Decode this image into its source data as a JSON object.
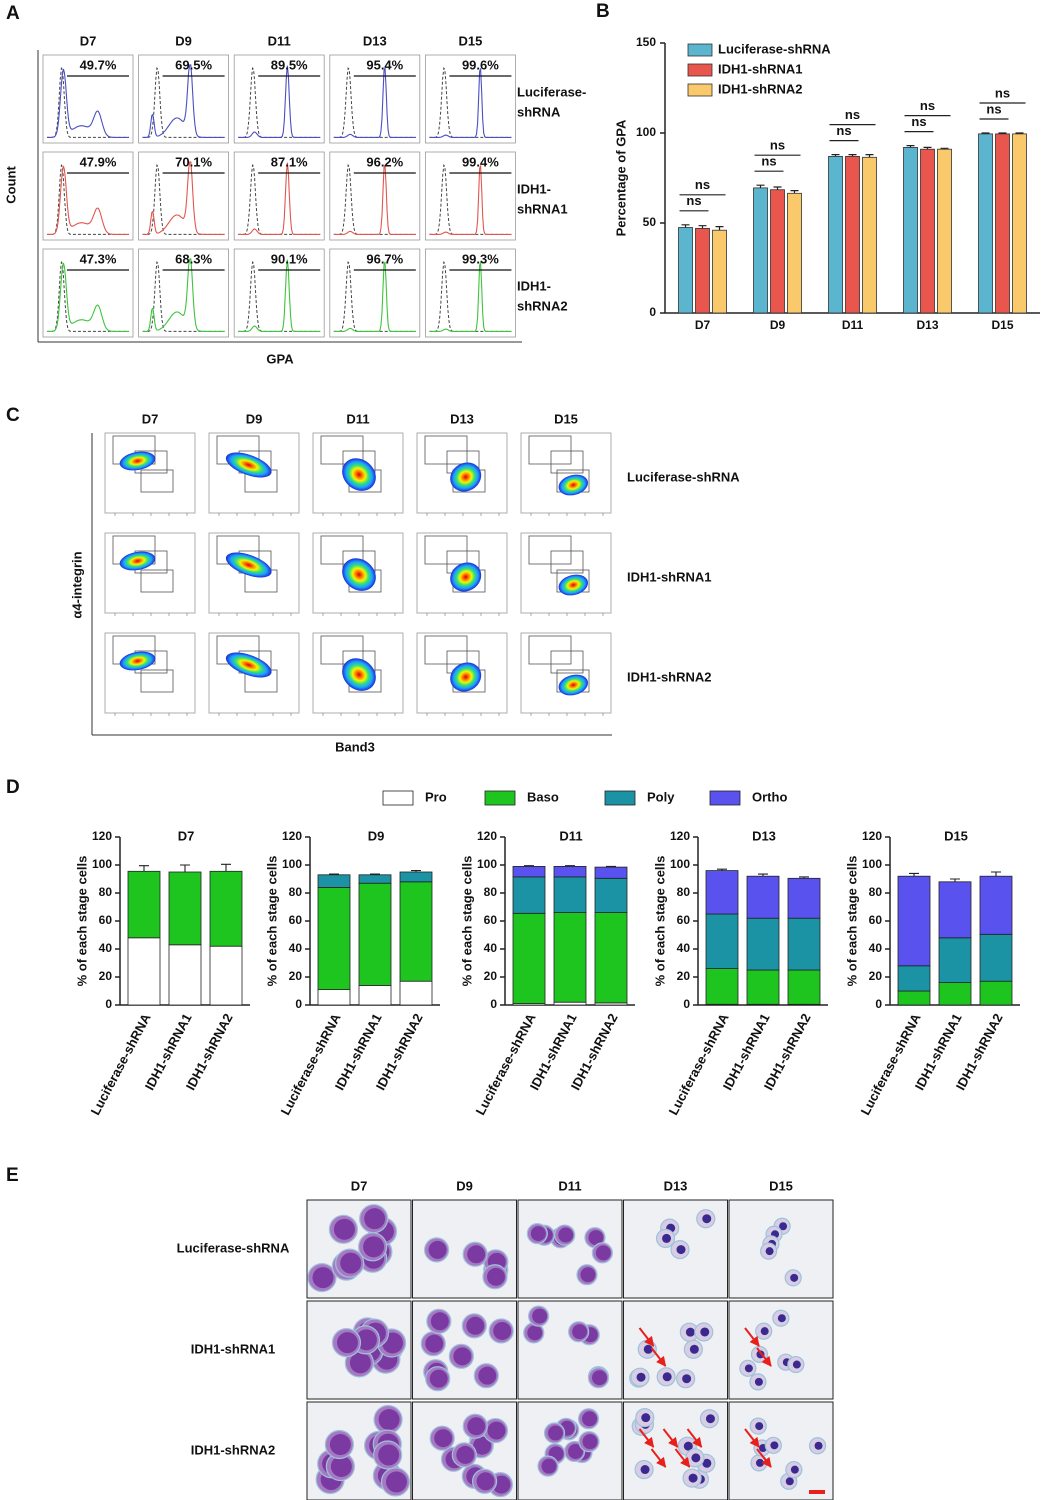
{
  "panel_labels": [
    "A",
    "B",
    "C",
    "D",
    "E"
  ],
  "panel_a": {
    "columns": [
      "D7",
      "D9",
      "D11",
      "D13",
      "D15"
    ],
    "ylabel": "Count",
    "xlabel": "GPA",
    "rows": [
      {
        "label_lines": [
          "Luciferase-",
          "shRNA"
        ],
        "color": "#4a4fc4",
        "gates": [
          "49.7%",
          "69.5%",
          "89.5%",
          "95.4%",
          "99.6%"
        ]
      },
      {
        "label_lines": [
          "IDH1-",
          "shRNA1"
        ],
        "color": "#e0574f",
        "gates": [
          "47.9%",
          "70.1%",
          "87.1%",
          "96.2%",
          "99.4%"
        ]
      },
      {
        "label_lines": [
          "IDH1-",
          "shRNA2"
        ],
        "color": "#3ec43e",
        "gates": [
          "47.3%",
          "68.3%",
          "90.1%",
          "96.7%",
          "99.3%"
        ]
      }
    ]
  },
  "chart_data": [
    {
      "type": "grouped_bar",
      "ylabel": "Percentage of GPA",
      "categories": [
        "D7",
        "D9",
        "D11",
        "D13",
        "D15"
      ],
      "series": [
        {
          "name": "Luciferase-shRNA",
          "color": "#5bb5cf",
          "values": [
            47.5,
            69.5,
            87,
            92,
            99.5
          ],
          "errors": [
            1.5,
            1.5,
            1,
            1,
            0.5
          ]
        },
        {
          "name": "IDH1-shRNA1",
          "color": "#e8564d",
          "values": [
            47,
            68.5,
            87,
            91,
            99.5
          ],
          "errors": [
            1.5,
            1.5,
            1,
            1,
            0.5
          ]
        },
        {
          "name": "IDH1-shRNA2",
          "color": "#f9c96b",
          "values": [
            46,
            66.5,
            86.5,
            91,
            99.5
          ],
          "errors": [
            2,
            1.5,
            1.5,
            0.5,
            0.5
          ]
        }
      ],
      "annotations": [
        [
          "ns",
          "ns"
        ],
        [
          "ns",
          "ns"
        ],
        [
          "ns",
          "ns"
        ],
        [
          "ns",
          "ns"
        ],
        [
          "ns",
          "ns"
        ]
      ],
      "ylim": [
        0,
        150
      ],
      "yticks": [
        0,
        50,
        100,
        150
      ]
    },
    {
      "type": "stacked_bar",
      "title": "D7",
      "ylabel": "% of each stage cells",
      "categories": [
        "Luciferase-shRNA",
        "IDH1-shRNA1",
        "IDH1-shRNA2"
      ],
      "series": [
        {
          "name": "Pro",
          "color": "#ffffff",
          "values": [
            48,
            43,
            42
          ],
          "errors": [
            3,
            3,
            4
          ]
        },
        {
          "name": "Baso",
          "color": "#1ec51e",
          "values": [
            47.5,
            52,
            53.5
          ],
          "errors": [
            4,
            5,
            5
          ]
        },
        {
          "name": "Poly",
          "color": "#1b93a5",
          "values": [
            0,
            0,
            0
          ],
          "errors": [
            0,
            0,
            0
          ]
        },
        {
          "name": "Ortho",
          "color": "#5a52ef",
          "values": [
            0,
            0,
            0
          ],
          "errors": [
            0,
            0,
            0
          ]
        }
      ],
      "ylim": [
        0,
        120
      ],
      "yticks": [
        0,
        20,
        40,
        60,
        80,
        100,
        120
      ]
    },
    {
      "type": "stacked_bar",
      "title": "D9",
      "ylabel": "% of each stage cells",
      "categories": [
        "Luciferase-shRNA",
        "IDH1-shRNA1",
        "IDH1-shRNA2"
      ],
      "series": [
        {
          "name": "Pro",
          "color": "#ffffff",
          "values": [
            11,
            14,
            17
          ],
          "errors": [
            0.5,
            0.5,
            2
          ]
        },
        {
          "name": "Baso",
          "color": "#1ec51e",
          "values": [
            73,
            73,
            71
          ],
          "errors": [
            2,
            1.5,
            1.5
          ]
        },
        {
          "name": "Poly",
          "color": "#1b93a5",
          "values": [
            9,
            6,
            7
          ],
          "errors": [
            0.5,
            0.5,
            1
          ]
        },
        {
          "name": "Ortho",
          "color": "#5a52ef",
          "values": [
            0,
            0,
            0
          ],
          "errors": [
            0,
            0,
            0
          ]
        }
      ],
      "ylim": [
        0,
        120
      ],
      "yticks": [
        0,
        20,
        40,
        60,
        80,
        100,
        120
      ]
    },
    {
      "type": "stacked_bar",
      "title": "D11",
      "ylabel": "% of each stage cells",
      "categories": [
        "Luciferase-shRNA",
        "IDH1-shRNA1",
        "IDH1-shRNA2"
      ],
      "series": [
        {
          "name": "Pro",
          "color": "#ffffff",
          "values": [
            1,
            2,
            1.5
          ],
          "errors": [
            0.3,
            0.3,
            0.3
          ]
        },
        {
          "name": "Baso",
          "color": "#1ec51e",
          "values": [
            64.5,
            64,
            64.5
          ],
          "errors": [
            1.5,
            2.5,
            1.5
          ]
        },
        {
          "name": "Poly",
          "color": "#1b93a5",
          "values": [
            26,
            25.5,
            24.5
          ],
          "errors": [
            1.5,
            1.5,
            2
          ]
        },
        {
          "name": "Ortho",
          "color": "#5a52ef",
          "values": [
            7.5,
            7.5,
            8
          ],
          "errors": [
            0.5,
            0.5,
            0.5
          ]
        }
      ],
      "ylim": [
        0,
        120
      ],
      "yticks": [
        0,
        20,
        40,
        60,
        80,
        100,
        120
      ]
    },
    {
      "type": "stacked_bar",
      "title": "D13",
      "ylabel": "% of each stage cells",
      "categories": [
        "Luciferase-shRNA",
        "IDH1-shRNA1",
        "IDH1-shRNA2"
      ],
      "series": [
        {
          "name": "Pro",
          "color": "#ffffff",
          "values": [
            0.5,
            0.5,
            0.5
          ],
          "errors": [
            0,
            0,
            0
          ]
        },
        {
          "name": "Baso",
          "color": "#1ec51e",
          "values": [
            25.5,
            24.5,
            24.5
          ],
          "errors": [
            0.5,
            1,
            1
          ]
        },
        {
          "name": "Poly",
          "color": "#1b93a5",
          "values": [
            39,
            37,
            37
          ],
          "errors": [
            0.5,
            1.5,
            1.5
          ]
        },
        {
          "name": "Ortho",
          "color": "#5a52ef",
          "values": [
            31,
            30,
            28.5
          ],
          "errors": [
            1,
            1.5,
            1
          ]
        }
      ],
      "ylim": [
        0,
        120
      ],
      "yticks": [
        0,
        20,
        40,
        60,
        80,
        100,
        120
      ]
    },
    {
      "type": "stacked_bar",
      "title": "D15",
      "ylabel": "% of each stage cells",
      "categories": [
        "Luciferase-shRNA",
        "IDH1-shRNA1",
        "IDH1-shRNA2"
      ],
      "series": [
        {
          "name": "Pro",
          "color": "#ffffff",
          "values": [
            0,
            0,
            0
          ],
          "errors": [
            0,
            0,
            0
          ]
        },
        {
          "name": "Baso",
          "color": "#1ec51e",
          "values": [
            10,
            16,
            17
          ],
          "errors": [
            1,
            2,
            1
          ]
        },
        {
          "name": "Poly",
          "color": "#1b93a5",
          "values": [
            18,
            32,
            33.5
          ],
          "errors": [
            0.5,
            1,
            2
          ]
        },
        {
          "name": "Ortho",
          "color": "#5a52ef",
          "values": [
            64,
            40,
            41.5
          ],
          "errors": [
            2,
            2,
            3
          ]
        }
      ],
      "ylim": [
        0,
        120
      ],
      "yticks": [
        0,
        20,
        40,
        60,
        80,
        100,
        120
      ]
    }
  ],
  "panel_c": {
    "columns": [
      "D7",
      "D9",
      "D11",
      "D13",
      "D15"
    ],
    "rows": [
      "Luciferase-shRNA",
      "IDH1-shRNA1",
      "IDH1-shRNA2"
    ],
    "ylabel": "α4-integrin",
    "xlabel": "Band3"
  },
  "panel_e": {
    "columns": [
      "D7",
      "D9",
      "D11",
      "D13",
      "D15"
    ],
    "rows": [
      "Luciferase-shRNA",
      "IDH1-shRNA1",
      "IDH1-shRNA2"
    ]
  }
}
